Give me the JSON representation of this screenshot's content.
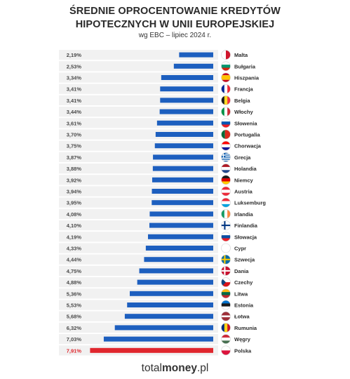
{
  "title_line1": "ŚREDNIE OPROCENTOWANIE KREDYTÓW",
  "title_line2": "HIPOTECZNYCH W UNII EUROPEJSKIEJ",
  "subtitle": "wg EBC – lipiec 2024 r.",
  "brand": {
    "plain": "total",
    "bold": "money",
    "suffix": ".pl"
  },
  "colors": {
    "bar": "#1d5fbf",
    "highlight": "#e0262d",
    "stripe": "#f1f1f1",
    "label": "#2b2b2b"
  },
  "chart_data": {
    "type": "bar",
    "orientation": "horizontal",
    "categories": [
      "Malta",
      "Bułgaria",
      "Hiszpania",
      "Francja",
      "Belgia",
      "Włochy",
      "Słowenia",
      "Portugalia",
      "Chorwacja",
      "Grecja",
      "Holandia",
      "Niemcy",
      "Austria",
      "Luksemburg",
      "Irlandia",
      "Finlandia",
      "Słowacja",
      "Cypr",
      "Szwecja",
      "Dania",
      "Czechy",
      "Litwa",
      "Estonia",
      "Łotwa",
      "Rumunia",
      "Węgry",
      "Polska"
    ],
    "values": [
      2.19,
      2.53,
      3.34,
      3.41,
      3.41,
      3.44,
      3.61,
      3.7,
      3.75,
      3.87,
      3.88,
      3.92,
      3.94,
      3.95,
      4.08,
      4.1,
      4.19,
      4.33,
      4.44,
      4.75,
      4.88,
      5.36,
      5.53,
      5.68,
      6.32,
      7.03,
      7.91
    ],
    "value_labels": [
      "2,19%",
      "2,53%",
      "3,34%",
      "3,41%",
      "3,41%",
      "3,44%",
      "3,61%",
      "3,70%",
      "3,75%",
      "3,87%",
      "3,88%",
      "3,92%",
      "3,94%",
      "3,95%",
      "4,08%",
      "4,10%",
      "4,19%",
      "4,33%",
      "4,44%",
      "4,75%",
      "4,88%",
      "5,36%",
      "5,53%",
      "5,68%",
      "6,32%",
      "7,03%",
      "7,91%"
    ],
    "highlight": "Polska",
    "flags": [
      {
        "type": "vertical",
        "colors": [
          "#ffffff",
          "#cf142b"
        ]
      },
      {
        "type": "horizontal",
        "colors": [
          "#ffffff",
          "#00966e",
          "#d62612"
        ]
      },
      {
        "type": "horizontal3",
        "colors": [
          "#c60b1e",
          "#ffc400",
          "#c60b1e"
        ]
      },
      {
        "type": "vertical",
        "colors": [
          "#002395",
          "#ffffff",
          "#ed2939"
        ]
      },
      {
        "type": "vertical",
        "colors": [
          "#1a1a1a",
          "#fdda24",
          "#ef3340"
        ]
      },
      {
        "type": "vertical",
        "colors": [
          "#009246",
          "#ffffff",
          "#ce2b37"
        ]
      },
      {
        "type": "horizontal",
        "colors": [
          "#ffffff",
          "#0056b3",
          "#ed1c24"
        ]
      },
      {
        "type": "vertical2",
        "colors": [
          "#046a38",
          "#da291c"
        ]
      },
      {
        "type": "horizontal",
        "colors": [
          "#ff0000",
          "#ffffff",
          "#171796"
        ]
      },
      {
        "type": "stripes",
        "colors": [
          "#0d5eaf",
          "#ffffff"
        ]
      },
      {
        "type": "horizontal",
        "colors": [
          "#ae1c28",
          "#ffffff",
          "#21468b"
        ]
      },
      {
        "type": "horizontal",
        "colors": [
          "#1a1a1a",
          "#dd0000",
          "#ffce00"
        ]
      },
      {
        "type": "horizontal",
        "colors": [
          "#ed2939",
          "#ffffff",
          "#ed2939"
        ]
      },
      {
        "type": "horizontal",
        "colors": [
          "#ed2939",
          "#ffffff",
          "#00a1de"
        ]
      },
      {
        "type": "vertical",
        "colors": [
          "#169b62",
          "#ffffff",
          "#ff883e"
        ]
      },
      {
        "type": "nordic",
        "colors": [
          "#ffffff",
          "#003580"
        ]
      },
      {
        "type": "horizontal",
        "colors": [
          "#ffffff",
          "#0b4ea2",
          "#ee1c25"
        ]
      },
      {
        "type": "vertical",
        "colors": [
          "#ffffff",
          "#ffffff",
          "#ffffff"
        ]
      },
      {
        "type": "nordic",
        "colors": [
          "#006aa7",
          "#fecc00"
        ]
      },
      {
        "type": "nordic",
        "colors": [
          "#c8102e",
          "#ffffff"
        ]
      },
      {
        "type": "czech",
        "colors": [
          "#ffffff",
          "#d7141a",
          "#11457e"
        ]
      },
      {
        "type": "horizontal",
        "colors": [
          "#fdb913",
          "#006a44",
          "#c1272d"
        ]
      },
      {
        "type": "horizontal",
        "colors": [
          "#0072ce",
          "#1a1a1a",
          "#ffffff"
        ]
      },
      {
        "type": "latvia",
        "colors": [
          "#9e3039",
          "#ffffff"
        ]
      },
      {
        "type": "vertical",
        "colors": [
          "#002b7f",
          "#fcd116",
          "#ce1126"
        ]
      },
      {
        "type": "horizontal",
        "colors": [
          "#ce2939",
          "#ffffff",
          "#477050"
        ]
      },
      {
        "type": "horizontal2",
        "colors": [
          "#ffffff",
          "#dc143c"
        ]
      }
    ]
  }
}
